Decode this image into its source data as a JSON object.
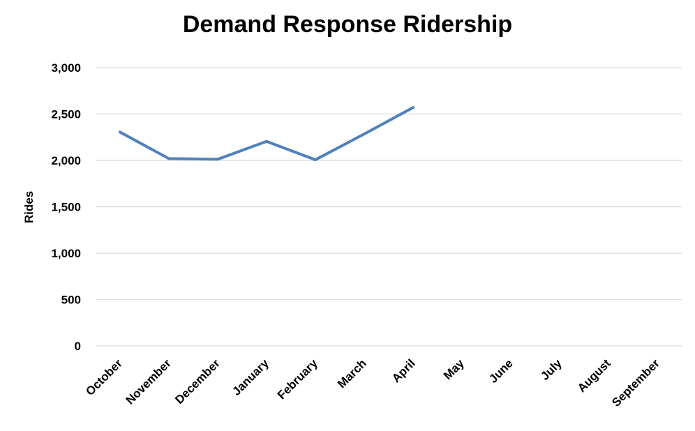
{
  "chart_data": {
    "type": "line",
    "title": "Demand Response Ridership",
    "xlabel": "",
    "ylabel": "Rides",
    "categories": [
      "October",
      "November",
      "December",
      "January",
      "February",
      "March",
      "April",
      "May",
      "June",
      "July",
      "August",
      "September"
    ],
    "series": [
      {
        "values": [
          2305,
          2020,
          2012,
          2205,
          2007,
          2285,
          2570,
          null,
          null,
          null,
          null,
          null
        ],
        "color": "#4f81bd"
      }
    ],
    "ylim": [
      0,
      3000
    ],
    "yticks": [
      0,
      500,
      1000,
      1500,
      2000,
      2500,
      3000
    ],
    "ytick_labels": [
      "0",
      "500",
      "1,000",
      "1,500",
      "2,000",
      "2,500",
      "3,000"
    ],
    "grid": true,
    "gridline_color": "#d9d9d9",
    "legend": "none"
  }
}
